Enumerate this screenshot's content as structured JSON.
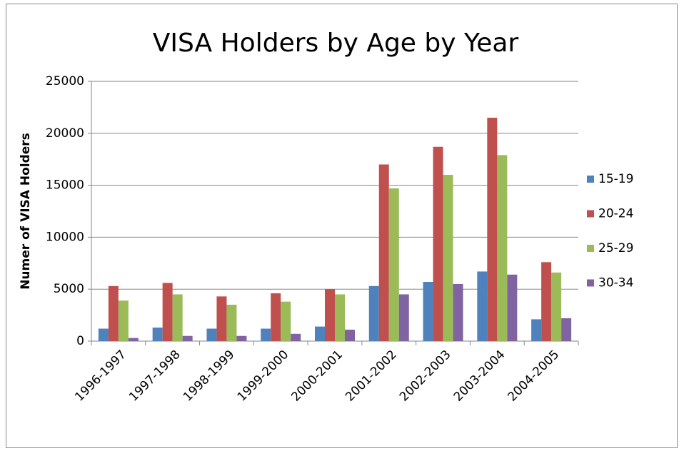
{
  "chart_data": {
    "type": "bar",
    "title": "VISA Holders by Age by Year",
    "ylabel": "Numer of VISA Holders",
    "categories": [
      "1996-1997",
      "1997-1998",
      "1998-1999",
      "1999-2000",
      "2000-2001",
      "2001-2002",
      "2002-2003",
      "2003-2004",
      "2004-2005"
    ],
    "series": [
      {
        "name": "15-19",
        "color": "#4f81bd",
        "values": [
          1200,
          1300,
          1200,
          1200,
          1400,
          5300,
          5700,
          6700,
          2100
        ]
      },
      {
        "name": "20-24",
        "color": "#c0504d",
        "values": [
          5300,
          5600,
          4300,
          4600,
          5000,
          17000,
          18700,
          21500,
          7600
        ]
      },
      {
        "name": "25-29",
        "color": "#9bbb59",
        "values": [
          3900,
          4500,
          3500,
          3800,
          4500,
          14700,
          16000,
          17900,
          6600
        ]
      },
      {
        "name": "30-34",
        "color": "#8064a2",
        "values": [
          300,
          500,
          500,
          700,
          1100,
          4500,
          5500,
          6400,
          2200
        ]
      }
    ],
    "ylim": [
      0,
      25000
    ],
    "yticks": [
      0,
      5000,
      10000,
      15000,
      20000,
      25000
    ],
    "grid": true,
    "legend": "right"
  }
}
